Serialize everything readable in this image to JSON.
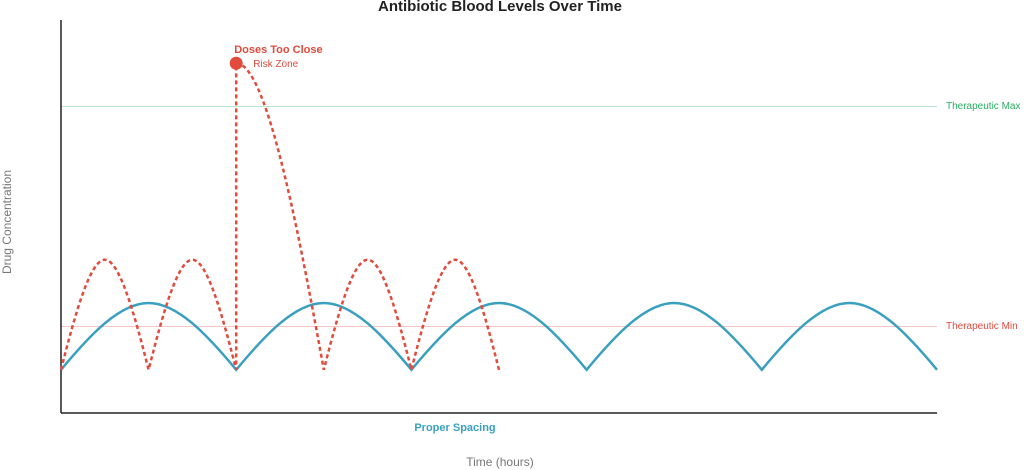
{
  "chart_data": {
    "type": "line",
    "title": "Antibiotic Blood Levels Over Time",
    "x_label": "Time (hours)",
    "y_label": "Drug Concentration",
    "xlim": [
      0,
      50
    ],
    "ylim": [
      0,
      100
    ],
    "series": [
      {
        "name": "Proper Spacing",
        "color": "#3aa0bf",
        "dashed": false,
        "x": [
          0,
          5,
          10,
          15,
          20,
          25,
          30,
          35,
          40,
          45,
          50
        ],
        "values": [
          11,
          28,
          11,
          28,
          11,
          28,
          11,
          28,
          11,
          28,
          11
        ]
      },
      {
        "name": "Doses Too Close",
        "color": "#e04b3c",
        "dashed": true,
        "x": [
          0,
          2.5,
          5,
          7.5,
          10,
          10,
          15,
          17.5,
          20,
          22.5,
          25
        ],
        "values": [
          11,
          39,
          11,
          39,
          11,
          89,
          11,
          39,
          11,
          39,
          11
        ]
      }
    ],
    "highlight": {
      "series": 1,
      "point": 5,
      "label": "Risk Zone"
    },
    "reference_lines": [
      {
        "label": "Therapeutic Max",
        "value": 78,
        "color": "#27ae60"
      },
      {
        "label": "Therapeutic Min",
        "value": 22,
        "color": "#e04b3c"
      }
    ]
  }
}
